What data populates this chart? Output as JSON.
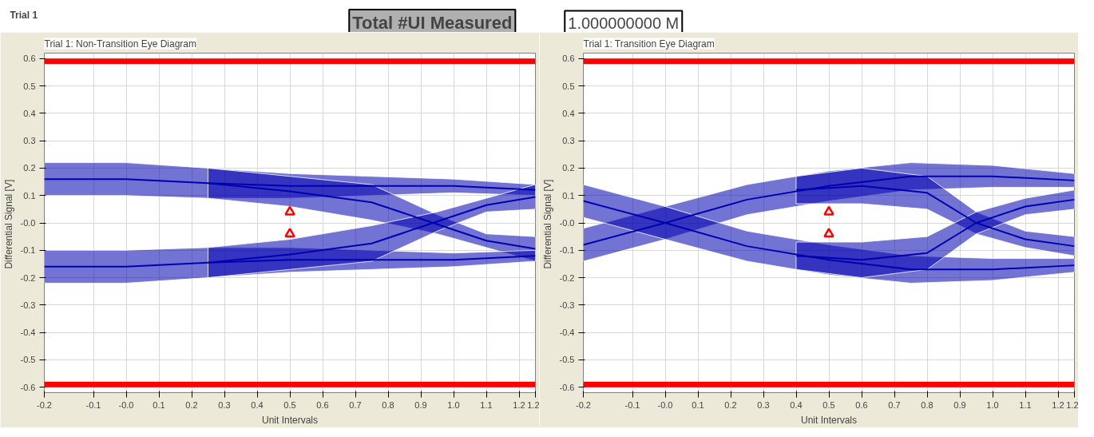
{
  "chart_data": [
    {
      "type": "other",
      "title": "Trial 1",
      "annotations": [
        "Total #UI Measured",
        "1.000000000 M"
      ]
    },
    {
      "type": "line",
      "title": "Trial 1: Non-Transition Eye Diagram",
      "xlabel": "Unit Intervals",
      "ylabel": "Differential Signal  [V]",
      "xlim": [
        -0.25,
        1.25
      ],
      "xticks": [
        {
          "value": -0.25,
          "label": "-0.2"
        },
        -0.1,
        {
          "value": 0,
          "label": "-0.0"
        },
        0.1,
        0.2,
        0.3,
        0.4,
        0.5,
        0.6,
        0.7,
        0.8,
        0.9,
        {
          "value": 1.0,
          "label": "1.0"
        },
        1.1,
        1.2,
        {
          "value": 1.25,
          "label": "1.2"
        }
      ],
      "ylim": [
        -0.62,
        0.62
      ],
      "yticks": [
        -0.6,
        -0.5,
        -0.4,
        -0.3,
        -0.2,
        -0.1,
        {
          "value": 0,
          "label": "-0.0"
        },
        0.1,
        0.2,
        0.3,
        0.4,
        0.5,
        0.6
      ],
      "grid": true,
      "ref_lines": [
        {
          "axis": "y",
          "value": 0.59,
          "color": "#ff0000"
        },
        {
          "axis": "y",
          "value": -0.59,
          "color": "#ff0000"
        }
      ],
      "series": [
        {
          "color": "#0000b0",
          "x": [
            -0.25,
            0,
            0.25,
            0.5,
            0.75,
            1.0,
            1.25
          ],
          "values": [
            0.16,
            0.16,
            0.145,
            0.135,
            0.135,
            0.135,
            0.12
          ],
          "upper": [
            0.22,
            0.22,
            0.2,
            0.18,
            0.17,
            0.16,
            0.14
          ],
          "lower": [
            0.1,
            0.1,
            0.09,
            0.09,
            0.1,
            0.11,
            0.1
          ]
        },
        {
          "color": "#0000b0",
          "x": [
            0.25,
            0.5,
            0.75,
            0.95,
            1.1,
            1.25
          ],
          "values": [
            0.145,
            0.115,
            0.075,
            -0.005,
            -0.065,
            -0.095
          ],
          "upper": [
            0.2,
            0.17,
            0.14,
            0.03,
            -0.04,
            -0.05
          ],
          "lower": [
            0.09,
            0.06,
            0.01,
            -0.04,
            -0.09,
            -0.14
          ]
        },
        {
          "color": "#0000b0",
          "x": [
            -0.25,
            0,
            0.25,
            0.5,
            0.75,
            1.0,
            1.25
          ],
          "values": [
            -0.16,
            -0.16,
            -0.145,
            -0.135,
            -0.135,
            -0.135,
            -0.12
          ],
          "upper": [
            -0.1,
            -0.1,
            -0.09,
            -0.09,
            -0.1,
            -0.11,
            -0.1
          ],
          "lower": [
            -0.22,
            -0.22,
            -0.2,
            -0.18,
            -0.17,
            -0.16,
            -0.14
          ]
        },
        {
          "color": "#0000b0",
          "x": [
            0.25,
            0.5,
            0.75,
            0.95,
            1.1,
            1.25
          ],
          "values": [
            -0.145,
            -0.115,
            -0.075,
            0.005,
            0.065,
            0.095
          ],
          "upper": [
            -0.09,
            -0.06,
            -0.01,
            0.04,
            0.09,
            0.14
          ],
          "lower": [
            -0.2,
            -0.17,
            -0.14,
            -0.03,
            0.04,
            0.05
          ]
        },
        {
          "type": "scatter",
          "marker": "triangle",
          "color": "#ff0000",
          "x": [
            0.5
          ],
          "values": [
            0.04
          ]
        },
        {
          "type": "scatter",
          "marker": "triangle",
          "color": "#ff0000",
          "x": [
            0.5
          ],
          "values": [
            -0.04
          ]
        }
      ]
    },
    {
      "type": "line",
      "title": "Trial 1: Transition Eye Diagram",
      "xlabel": "Unit Intervals",
      "ylabel": "Differential Signal  [V]",
      "xlim": [
        -0.25,
        1.25
      ],
      "xticks": [
        {
          "value": -0.25,
          "label": "-0.2"
        },
        -0.1,
        {
          "value": 0,
          "label": "-0.0"
        },
        0.1,
        0.2,
        0.3,
        0.4,
        0.5,
        0.6,
        0.7,
        0.8,
        0.9,
        {
          "value": 1.0,
          "label": "1.0"
        },
        1.1,
        1.2,
        {
          "value": 1.25,
          "label": "1.2"
        }
      ],
      "ylim": [
        -0.62,
        0.62
      ],
      "yticks": [
        -0.6,
        -0.5,
        -0.4,
        -0.3,
        -0.2,
        -0.1,
        {
          "value": 0,
          "label": "-0.0"
        },
        0.1,
        0.2,
        0.3,
        0.4,
        0.5,
        0.6
      ],
      "grid": true,
      "ref_lines": [
        {
          "axis": "y",
          "value": 0.59,
          "color": "#ff0000"
        },
        {
          "axis": "y",
          "value": -0.59,
          "color": "#ff0000"
        }
      ],
      "series": [
        {
          "color": "#0000b0",
          "x": [
            -0.25,
            0,
            0.25,
            0.5,
            0.75,
            1.0,
            1.25
          ],
          "values": [
            -0.08,
            0.0,
            0.085,
            0.135,
            0.17,
            0.17,
            0.155
          ],
          "upper": [
            -0.02,
            0.06,
            0.14,
            0.19,
            0.22,
            0.21,
            0.18
          ],
          "lower": [
            -0.14,
            -0.06,
            0.03,
            0.08,
            0.12,
            0.13,
            0.13
          ]
        },
        {
          "color": "#0000b0",
          "x": [
            -0.25,
            0,
            0.25,
            0.5,
            0.75,
            1.0,
            1.25
          ],
          "values": [
            0.08,
            0.0,
            -0.085,
            -0.135,
            -0.17,
            -0.17,
            -0.155
          ],
          "upper": [
            0.14,
            0.06,
            -0.03,
            -0.08,
            -0.12,
            -0.13,
            -0.13
          ],
          "lower": [
            0.02,
            -0.06,
            -0.14,
            -0.19,
            -0.22,
            -0.21,
            -0.18
          ]
        },
        {
          "color": "#0000b0",
          "x": [
            0.4,
            0.6,
            0.8,
            0.95,
            1.1,
            1.25
          ],
          "values": [
            0.12,
            0.135,
            0.11,
            0.0,
            -0.06,
            -0.085
          ],
          "upper": [
            0.17,
            0.2,
            0.17,
            0.04,
            -0.03,
            -0.05
          ],
          "lower": [
            0.07,
            0.07,
            0.05,
            -0.04,
            -0.09,
            -0.12
          ]
        },
        {
          "color": "#0000b0",
          "x": [
            0.4,
            0.6,
            0.8,
            0.95,
            1.1,
            1.25
          ],
          "values": [
            -0.12,
            -0.135,
            -0.11,
            0.0,
            0.06,
            0.085
          ],
          "upper": [
            -0.07,
            -0.07,
            -0.05,
            0.04,
            0.09,
            0.12
          ],
          "lower": [
            -0.17,
            -0.2,
            -0.17,
            -0.04,
            0.03,
            0.05
          ]
        },
        {
          "type": "scatter",
          "marker": "triangle",
          "color": "#ff0000",
          "x": [
            0.5
          ],
          "values": [
            0.04
          ]
        },
        {
          "type": "scatter",
          "marker": "triangle",
          "color": "#ff0000",
          "x": [
            0.5
          ],
          "values": [
            -0.04
          ]
        }
      ]
    }
  ]
}
